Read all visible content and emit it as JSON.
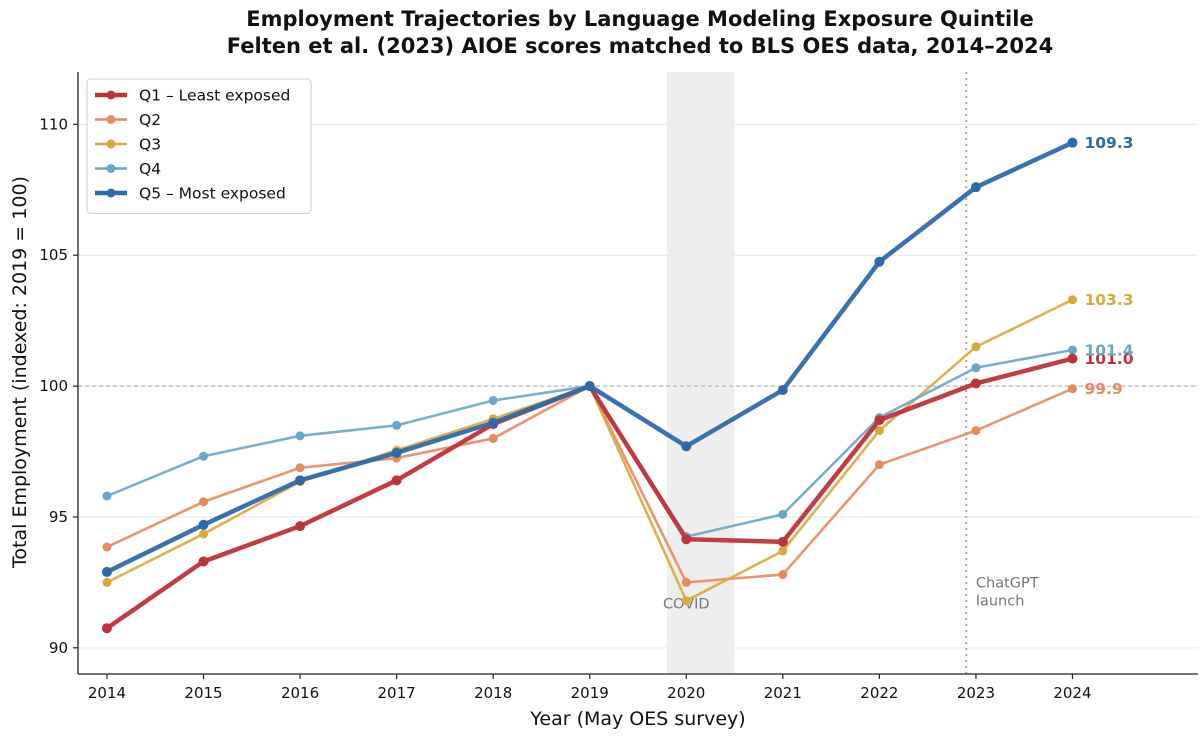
{
  "chart_data": {
    "type": "line",
    "title": "Employment Trajectories by Language Modeling Exposure Quintile",
    "subtitle": "Felten et al. (2023) AIOE scores matched to BLS OES data, 2014–2024",
    "xlabel": "Year (May OES survey)",
    "ylabel": "Total Employment (indexed: 2019 = 100)",
    "x": [
      2014,
      2015,
      2016,
      2017,
      2018,
      2019,
      2020,
      2021,
      2022,
      2023,
      2024
    ],
    "x_tick_labels": [
      "2014",
      "2015",
      "2016",
      "2017",
      "2018",
      "2019",
      "2020",
      "2021",
      "2022",
      "2023",
      "2024"
    ],
    "xlim": [
      2013.7,
      2025.3
    ],
    "ylim": [
      89.0,
      112.0
    ],
    "y_ticks": [
      90,
      95,
      100,
      105,
      110
    ],
    "y_tick_labels": [
      "90",
      "95",
      "100",
      "105",
      "110"
    ],
    "reference_line": 100,
    "grid": true,
    "legend_position": "top-left",
    "series": [
      {
        "name": "Q1 – Least exposed",
        "color": "#c0323a",
        "emphasis": true,
        "values": [
          90.75,
          93.3,
          94.65,
          96.4,
          98.55,
          100.0,
          94.15,
          94.05,
          98.7,
          100.1,
          101.05
        ],
        "end_label": "101.0"
      },
      {
        "name": "Q2",
        "color": "#e68a60",
        "emphasis": false,
        "values": [
          93.85,
          95.58,
          96.88,
          97.25,
          98.0,
          100.0,
          92.5,
          92.8,
          97.0,
          98.3,
          99.9
        ],
        "end_label": "99.9"
      },
      {
        "name": "Q3",
        "color": "#d9a83c",
        "emphasis": false,
        "values": [
          92.5,
          94.35,
          96.35,
          97.55,
          98.75,
          100.0,
          91.8,
          93.7,
          98.3,
          101.5,
          103.3
        ],
        "end_label": "103.3"
      },
      {
        "name": "Q4",
        "color": "#6aa6c8",
        "emphasis": false,
        "values": [
          95.8,
          97.32,
          98.1,
          98.5,
          99.45,
          100.0,
          94.25,
          95.1,
          98.8,
          100.7,
          101.38
        ],
        "end_label": "101.4"
      },
      {
        "name": "Q5 – Most exposed",
        "color": "#2e6aa8",
        "emphasis": true,
        "values": [
          92.9,
          94.7,
          96.4,
          97.45,
          98.6,
          100.0,
          97.7,
          99.85,
          104.75,
          107.6,
          109.3
        ],
        "end_label": "109.3"
      }
    ],
    "annotations": [
      {
        "type": "shaded_span",
        "x_from": 2019.8,
        "x_to": 2020.5,
        "label": "COVID",
        "label_x": 2020.0,
        "label_y": 91.7
      },
      {
        "type": "vertical_line",
        "x": 2022.9,
        "label_lines": [
          "ChatGPT",
          "launch"
        ],
        "label_x": 2023.0,
        "label_y": 92.3
      }
    ]
  }
}
